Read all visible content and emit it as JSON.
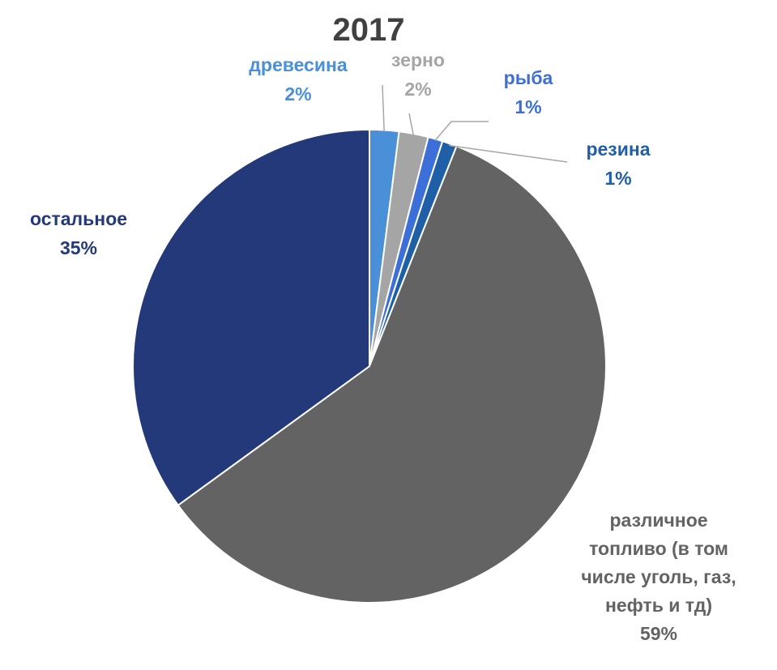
{
  "chart_data": {
    "type": "pie",
    "title": "2017",
    "slices": [
      {
        "name": "древесина",
        "value": 2,
        "label": "2%",
        "color": "#4a90d9"
      },
      {
        "name": "зерно",
        "value": 2,
        "label": "2%",
        "color": "#a5a5a5"
      },
      {
        "name": "рыба",
        "value": 1,
        "label": "1%",
        "color": "#3c6fd8"
      },
      {
        "name": "резина",
        "value": 1,
        "label": "1%",
        "color": "#1f5fa8"
      },
      {
        "name": "различное топливо (в том числе уголь, газ, нефть и тд)",
        "value": 59,
        "label": "59%",
        "color": "#636363"
      },
      {
        "name": "остальное",
        "value": 35,
        "label": "35%",
        "color": "#24397a"
      }
    ],
    "label_colors": {
      "древесина": "#4a90d9",
      "зерно": "#a5a5a5",
      "рыба": "#3c6fd8",
      "резина": "#1f5fa8",
      "различное топливо (в том числе уголь, газ, нефть и тд)": "#636363",
      "остальное": "#24397a"
    }
  }
}
